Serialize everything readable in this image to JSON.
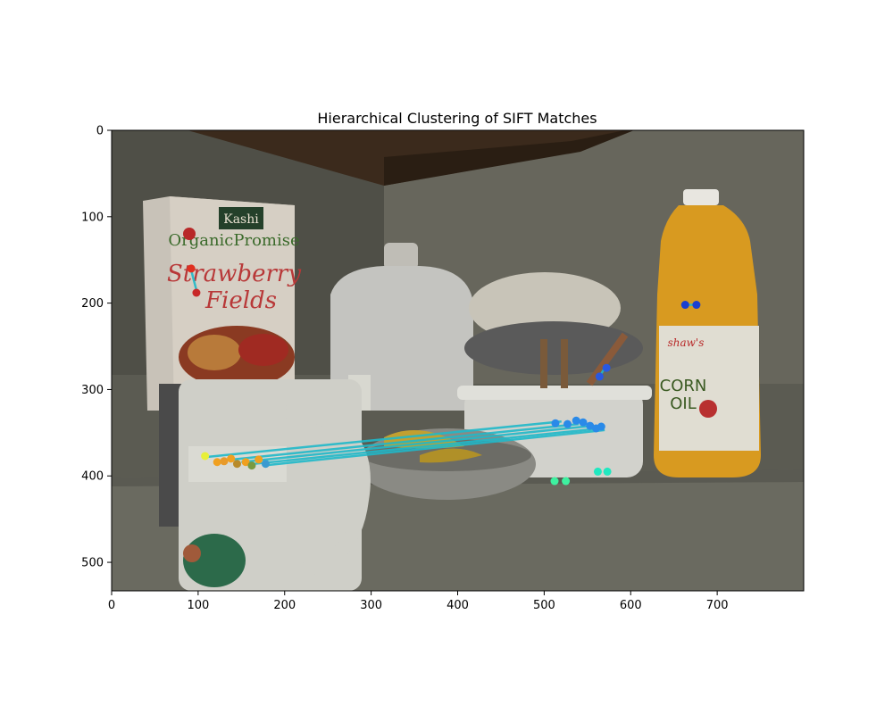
{
  "figure": {
    "title": "Hierarchical Clustering of SIFT Matches"
  },
  "image": {
    "description_objects": [
      "cereal-box",
      "milk-jug",
      "mug",
      "bowl",
      "banana",
      "oil-bottle",
      "food-container"
    ],
    "box_brand": "Kashi",
    "box_line1": "OrganicPromise",
    "box_line2": "Strawberry",
    "box_line3": "Fields",
    "bottle_brand": "shaw's",
    "bottle_line1": "CORN",
    "bottle_line2": "OIL"
  },
  "axes": {
    "x_ticks": [
      "0",
      "100",
      "200",
      "300",
      "400",
      "500",
      "600",
      "700"
    ],
    "y_ticks": [
      "0",
      "100",
      "200",
      "300",
      "400",
      "500"
    ],
    "xlim": [
      0,
      800
    ],
    "ylim": [
      533,
      0
    ]
  },
  "match_lines": [
    {
      "from": [
        110,
        378
      ],
      "to": [
        520,
        337
      ],
      "color": "#1fb8c9"
    },
    {
      "from": [
        130,
        382
      ],
      "to": [
        540,
        340
      ],
      "color": "#1fb8c9"
    },
    {
      "from": [
        150,
        384
      ],
      "to": [
        555,
        342
      ],
      "color": "#1fb8c9"
    },
    {
      "from": [
        165,
        386
      ],
      "to": [
        565,
        345
      ],
      "color": "#1fb8c9"
    },
    {
      "from": [
        175,
        388
      ],
      "to": [
        570,
        347
      ],
      "color": "#1fb8c9"
    },
    {
      "from": [
        92,
        162
      ],
      "to": [
        98,
        185
      ],
      "color": "#1fb8c9"
    },
    {
      "from": [
        663,
        202
      ],
      "to": [
        676,
        202
      ],
      "color": "#1fb8c9"
    },
    {
      "from": [
        570,
        275
      ],
      "to": [
        564,
        285
      ],
      "color": "#1fb8c9"
    }
  ],
  "keypoints": [
    {
      "x": 108,
      "y": 377,
      "color": "#e8ef3a"
    },
    {
      "x": 122,
      "y": 384,
      "color": "#f0a020"
    },
    {
      "x": 130,
      "y": 383,
      "color": "#e89a2a"
    },
    {
      "x": 138,
      "y": 380,
      "color": "#f0a020"
    },
    {
      "x": 145,
      "y": 386,
      "color": "#b88a2a"
    },
    {
      "x": 155,
      "y": 384,
      "color": "#f0a020"
    },
    {
      "x": 162,
      "y": 388,
      "color": "#7a9a40"
    },
    {
      "x": 170,
      "y": 381,
      "color": "#f0a020"
    },
    {
      "x": 178,
      "y": 386,
      "color": "#3a9ad0"
    },
    {
      "x": 92,
      "y": 160,
      "color": "#e03020"
    },
    {
      "x": 98,
      "y": 188,
      "color": "#c82828"
    },
    {
      "x": 663,
      "y": 202,
      "color": "#1a3fd0"
    },
    {
      "x": 676,
      "y": 202,
      "color": "#1a3fd0"
    },
    {
      "x": 572,
      "y": 275,
      "color": "#2a58e0"
    },
    {
      "x": 564,
      "y": 285,
      "color": "#2a58e0"
    },
    {
      "x": 513,
      "y": 339,
      "color": "#2a8ae8"
    },
    {
      "x": 527,
      "y": 340,
      "color": "#2a8ae8"
    },
    {
      "x": 537,
      "y": 336,
      "color": "#2a8ae8"
    },
    {
      "x": 545,
      "y": 338,
      "color": "#2a8ae8"
    },
    {
      "x": 553,
      "y": 342,
      "color": "#2a8ae8"
    },
    {
      "x": 560,
      "y": 345,
      "color": "#2a8ae8"
    },
    {
      "x": 566,
      "y": 343,
      "color": "#2a8ae8"
    },
    {
      "x": 512,
      "y": 406,
      "color": "#3ef0a0"
    },
    {
      "x": 525,
      "y": 406,
      "color": "#3ef0a0"
    },
    {
      "x": 562,
      "y": 395,
      "color": "#20e8c0"
    },
    {
      "x": 573,
      "y": 395,
      "color": "#20e8c0"
    }
  ]
}
